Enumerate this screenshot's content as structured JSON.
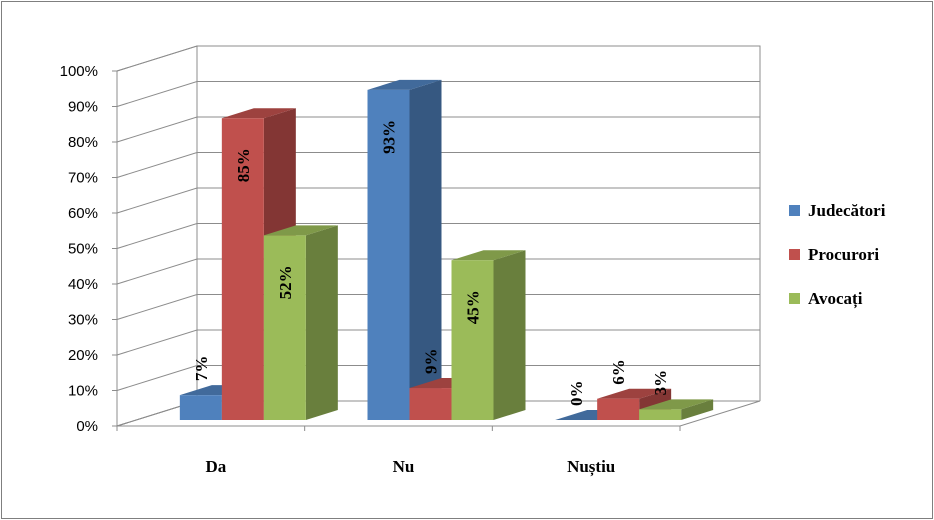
{
  "chart_data": {
    "type": "bar",
    "categories": [
      "Da",
      "Nu",
      "Nuștiu"
    ],
    "series": [
      {
        "name": "Judecători",
        "values": [
          7,
          93,
          0
        ],
        "labels": [
          "7%",
          "93%",
          "0%"
        ],
        "color": "#4f81bd"
      },
      {
        "name": "Procurori",
        "values": [
          85,
          9,
          6
        ],
        "labels": [
          "85%",
          "9%",
          "6%"
        ],
        "color": "#c0504d"
      },
      {
        "name": "Avocați",
        "values": [
          52,
          45,
          3
        ],
        "labels": [
          "52%",
          "45%",
          "3%"
        ],
        "color": "#9bbb59"
      }
    ],
    "y_ticks": [
      "0%",
      "10%",
      "20%",
      "30%",
      "40%",
      "50%",
      "60%",
      "70%",
      "80%",
      "90%",
      "100%"
    ],
    "ylim": [
      0,
      100
    ],
    "grid": true,
    "legend_position": "right",
    "three_d": true
  }
}
